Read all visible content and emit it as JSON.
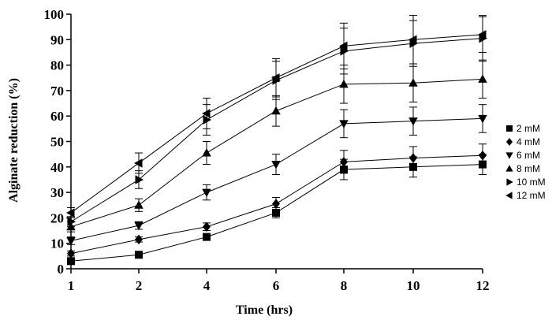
{
  "chart_data": {
    "type": "line",
    "xlabel": "Time (hrs)",
    "ylabel": "Alginate reduction (%)",
    "categories": [
      "1",
      "2",
      "4",
      "6",
      "8",
      "10",
      "12"
    ],
    "ylim": [
      0,
      100
    ],
    "yticks": [
      "0",
      "10",
      "20",
      "30",
      "40",
      "50",
      "60",
      "70",
      "80",
      "90",
      "100"
    ],
    "grid": false,
    "legend_position": "right",
    "series": [
      {
        "name": "2 mM",
        "marker": "square",
        "values": [
          3,
          5.5,
          12.5,
          22,
          39,
          40,
          41
        ],
        "errors": [
          1,
          0.8,
          1.2,
          2,
          4,
          4,
          4
        ]
      },
      {
        "name": "4 mM",
        "marker": "diamond",
        "values": [
          6,
          11.5,
          16.5,
          25.5,
          42,
          43.5,
          44.5
        ],
        "errors": [
          1,
          1,
          1.5,
          2.5,
          4.5,
          4.5,
          4.5
        ]
      },
      {
        "name": "6 mM",
        "marker": "triangle-down",
        "values": [
          11,
          17,
          30,
          41,
          57,
          58,
          59
        ],
        "errors": [
          1.5,
          1.5,
          3,
          4,
          5.5,
          5.5,
          5.5
        ]
      },
      {
        "name": "8 mM",
        "marker": "triangle-up",
        "values": [
          16.5,
          25,
          45.5,
          62,
          72.5,
          73,
          74.5
        ],
        "errors": [
          2,
          2.5,
          4.5,
          6,
          7.5,
          7.5,
          7.5
        ]
      },
      {
        "name": "10 mM",
        "marker": "triangle-right",
        "values": [
          18.5,
          35,
          58.5,
          74,
          85.5,
          88.5,
          90.5
        ],
        "errors": [
          2,
          3.5,
          6,
          7.5,
          9,
          9,
          9
        ]
      },
      {
        "name": "12 mM",
        "marker": "triangle-left",
        "values": [
          22,
          41.5,
          61,
          75,
          87.5,
          90,
          92
        ],
        "errors": [
          2,
          4,
          6,
          7.5,
          9,
          9.5,
          7
        ]
      }
    ]
  }
}
